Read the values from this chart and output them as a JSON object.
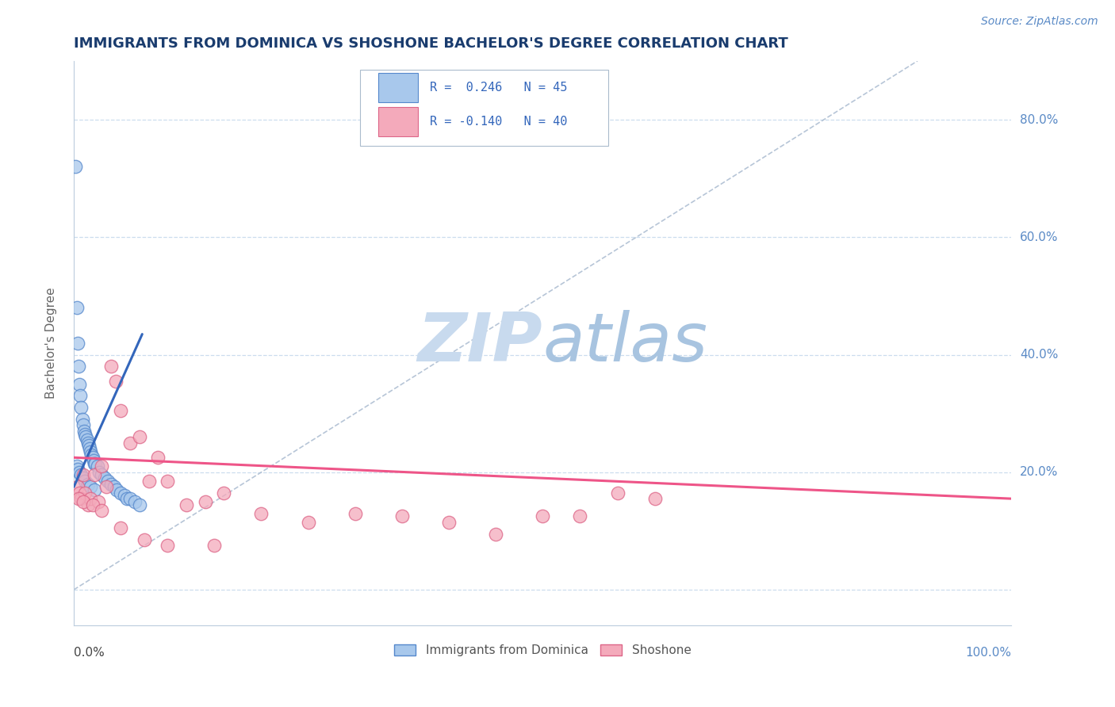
{
  "title": "IMMIGRANTS FROM DOMINICA VS SHOSHONE BACHELOR'S DEGREE CORRELATION CHART",
  "source_text": "Source: ZipAtlas.com",
  "ylabel": "Bachelor's Degree",
  "xmin": 0.0,
  "xmax": 1.0,
  "ymin": -0.06,
  "ymax": 0.9,
  "yticks": [
    0.0,
    0.2,
    0.4,
    0.6,
    0.8
  ],
  "ytick_labels": [
    "",
    "20.0%",
    "40.0%",
    "60.0%",
    "80.0%"
  ],
  "legend_labels": [
    "Immigrants from Dominica",
    "Shoshone"
  ],
  "legend_r_values": [
    "R =  0.246",
    "R = -0.140"
  ],
  "legend_n_values": [
    "N = 45",
    "N = 40"
  ],
  "blue_color": "#A8C8EC",
  "pink_color": "#F4AABB",
  "blue_edge_color": "#5588CC",
  "pink_edge_color": "#DD6688",
  "blue_line_color": "#3366BB",
  "pink_line_color": "#EE5588",
  "title_color": "#1A3C6E",
  "source_color": "#5A8AC6",
  "background_color": "#FFFFFF",
  "grid_color": "#CCDDEE",
  "watermark_color": "#D0E4F4",
  "ref_line_color": "#AABBD0",
  "blue_scatter_x": [
    0.002,
    0.003,
    0.004,
    0.005,
    0.006,
    0.007,
    0.008,
    0.009,
    0.01,
    0.011,
    0.012,
    0.013,
    0.014,
    0.015,
    0.016,
    0.017,
    0.018,
    0.019,
    0.02,
    0.021,
    0.022,
    0.023,
    0.025,
    0.027,
    0.03,
    0.033,
    0.036,
    0.04,
    0.043,
    0.046,
    0.05,
    0.054,
    0.057,
    0.06,
    0.065,
    0.07,
    0.003,
    0.004,
    0.006,
    0.008,
    0.01,
    0.012,
    0.015,
    0.018,
    0.022
  ],
  "blue_scatter_y": [
    0.72,
    0.48,
    0.42,
    0.38,
    0.35,
    0.33,
    0.31,
    0.29,
    0.28,
    0.27,
    0.265,
    0.26,
    0.255,
    0.25,
    0.245,
    0.24,
    0.235,
    0.23,
    0.225,
    0.22,
    0.215,
    0.215,
    0.21,
    0.2,
    0.195,
    0.19,
    0.185,
    0.18,
    0.175,
    0.17,
    0.165,
    0.16,
    0.155,
    0.155,
    0.15,
    0.145,
    0.21,
    0.205,
    0.2,
    0.195,
    0.19,
    0.185,
    0.18,
    0.175,
    0.17
  ],
  "pink_scatter_x": [
    0.004,
    0.006,
    0.008,
    0.01,
    0.012,
    0.015,
    0.018,
    0.022,
    0.026,
    0.03,
    0.035,
    0.04,
    0.045,
    0.05,
    0.06,
    0.07,
    0.08,
    0.09,
    0.1,
    0.12,
    0.14,
    0.16,
    0.2,
    0.25,
    0.3,
    0.35,
    0.4,
    0.45,
    0.5,
    0.54,
    0.58,
    0.62,
    0.005,
    0.01,
    0.02,
    0.03,
    0.05,
    0.075,
    0.1,
    0.15
  ],
  "pink_scatter_y": [
    0.175,
    0.165,
    0.155,
    0.195,
    0.165,
    0.145,
    0.155,
    0.195,
    0.15,
    0.21,
    0.175,
    0.38,
    0.355,
    0.305,
    0.25,
    0.26,
    0.185,
    0.225,
    0.185,
    0.145,
    0.15,
    0.165,
    0.13,
    0.115,
    0.13,
    0.125,
    0.115,
    0.095,
    0.125,
    0.125,
    0.165,
    0.155,
    0.155,
    0.15,
    0.145,
    0.135,
    0.105,
    0.085,
    0.075,
    0.075
  ],
  "blue_trend_x": [
    0.0,
    0.073
  ],
  "blue_trend_y": [
    0.175,
    0.435
  ],
  "pink_trend_x": [
    0.0,
    1.0
  ],
  "pink_trend_y": [
    0.225,
    0.155
  ],
  "ref_line_x": [
    0.0,
    0.9
  ],
  "ref_line_y": [
    0.0,
    0.9
  ]
}
